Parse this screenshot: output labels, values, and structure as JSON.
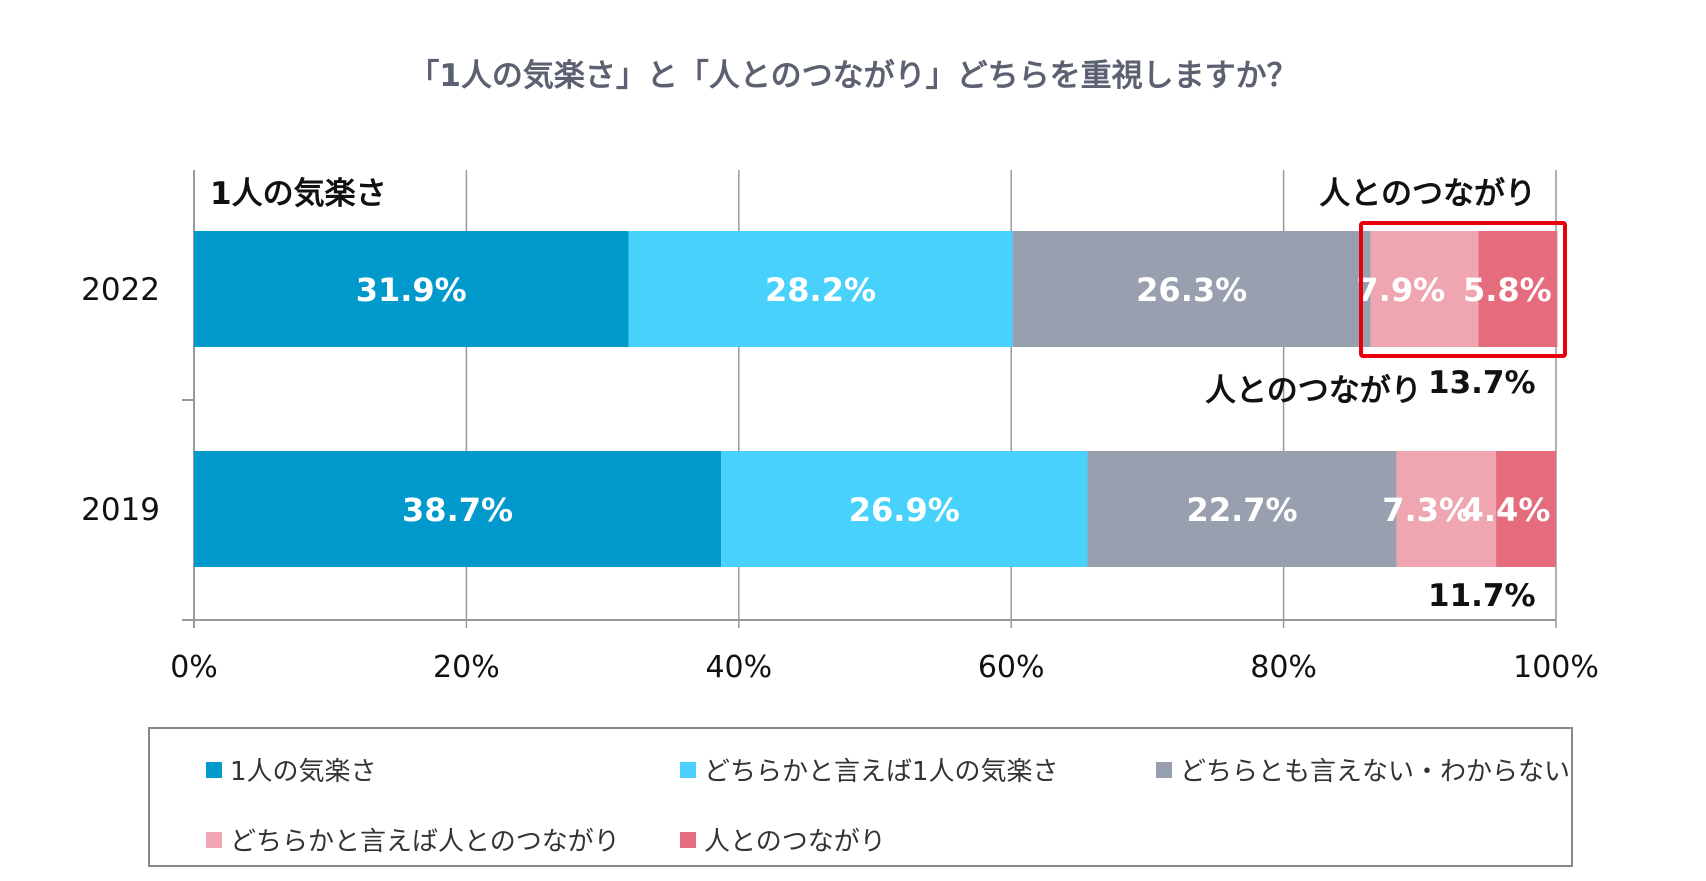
{
  "chart_data": {
    "type": "bar",
    "orientation": "horizontal-stacked-100",
    "title": "「1人の気楽さ」と「人とのつながり」どちらを重視しますか？",
    "categories": [
      "2022",
      "2019"
    ],
    "series": [
      {
        "name": "1人の気楽さ",
        "values": [
          31.9,
          38.7
        ],
        "labels": [
          "31.9%",
          "38.7%"
        ],
        "color": "#0099CC"
      },
      {
        "name": "どちらかと言えば1人の気楽さ",
        "values": [
          28.2,
          26.9
        ],
        "labels": [
          "28.2%",
          "26.9%"
        ],
        "color": "#47D1FB"
      },
      {
        "name": "どちらとも言えない・わからない",
        "values": [
          26.3,
          22.7
        ],
        "labels": [
          "26.3%",
          "22.7%"
        ],
        "color": "#98A0AF"
      },
      {
        "name": "どちらかと言えば人とのつながり",
        "values": [
          7.9,
          7.3
        ],
        "labels": [
          "7.9%",
          "7.3%"
        ],
        "color": "#F0A6B0"
      },
      {
        "name": "人とのつながり",
        "values": [
          5.8,
          4.4
        ],
        "labels": [
          "5.8%",
          "4.4%"
        ],
        "color": "#E56C7D"
      }
    ],
    "xlim": [
      0,
      100
    ],
    "xticks": [
      "0%",
      "20%",
      "40%",
      "60%",
      "80%",
      "100%"
    ],
    "grid": true,
    "legend_position": "bottom",
    "annotations": {
      "left_header": "1人の気楽さ",
      "right_header": "人とのつながり",
      "total_2022_label": "人とのつながり",
      "total_2022": "13.7%",
      "total_2019": "11.7%",
      "highlight_color": "#E8000B"
    }
  }
}
